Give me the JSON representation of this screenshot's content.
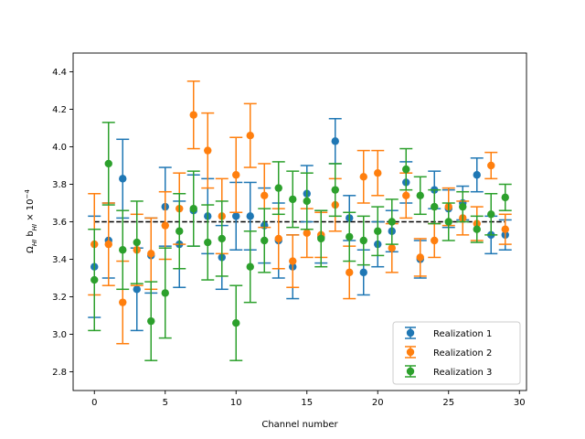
{
  "chart_data": {
    "type": "scatter",
    "title": "",
    "xlabel": "Channel number",
    "ylabel": "Ω_HI b_HI × 10^-4",
    "xlim": [
      -1.5,
      30.5
    ],
    "ylim": [
      2.7,
      4.5
    ],
    "xticks": [
      0,
      5,
      10,
      15,
      20,
      25,
      30
    ],
    "yticks": [
      2.8,
      3.0,
      3.2,
      3.4,
      3.6,
      3.8,
      4.0,
      4.2,
      4.4
    ],
    "reference_line": {
      "y": 3.6,
      "style": "dashed",
      "color": "#000000"
    },
    "legend_position": "lower-right",
    "series": [
      {
        "name": "Realization 1",
        "color": "#1f77b4",
        "x": [
          0,
          1,
          2,
          3,
          4,
          5,
          6,
          7,
          8,
          9,
          10,
          11,
          12,
          13,
          14,
          15,
          16,
          17,
          18,
          19,
          20,
          21,
          22,
          23,
          24,
          25,
          26,
          27,
          28,
          29
        ],
        "y": [
          3.36,
          3.5,
          3.83,
          3.24,
          3.42,
          3.68,
          3.48,
          3.66,
          3.63,
          3.41,
          3.63,
          3.63,
          3.58,
          3.5,
          3.36,
          3.75,
          3.52,
          4.03,
          3.62,
          3.33,
          3.48,
          3.55,
          3.81,
          3.4,
          3.77,
          3.67,
          3.7,
          3.85,
          3.53,
          3.53
        ],
        "yerr": [
          0.27,
          0.2,
          0.21,
          0.22,
          0.2,
          0.21,
          0.23,
          0.19,
          0.2,
          0.17,
          0.18,
          0.18,
          0.2,
          0.2,
          0.17,
          0.15,
          0.14,
          0.12,
          0.12,
          0.12,
          0.12,
          0.11,
          0.11,
          0.1,
          0.1,
          0.1,
          0.09,
          0.09,
          0.1,
          0.08
        ]
      },
      {
        "name": "Realization 2",
        "color": "#ff7f0e",
        "x": [
          0,
          1,
          2,
          3,
          4,
          5,
          6,
          7,
          8,
          9,
          10,
          11,
          12,
          13,
          14,
          15,
          16,
          17,
          18,
          19,
          20,
          21,
          22,
          23,
          24,
          25,
          26,
          27,
          28,
          29
        ],
        "y": [
          3.48,
          3.48,
          3.17,
          3.45,
          3.43,
          3.58,
          3.67,
          4.17,
          3.98,
          3.63,
          3.85,
          4.06,
          3.74,
          3.51,
          3.39,
          3.54,
          3.53,
          3.69,
          3.33,
          3.84,
          3.86,
          3.46,
          3.74,
          3.41,
          3.5,
          3.68,
          3.62,
          3.59,
          3.9,
          3.56
        ],
        "yerr": [
          0.27,
          0.22,
          0.22,
          0.19,
          0.19,
          0.18,
          0.19,
          0.18,
          0.2,
          0.2,
          0.2,
          0.17,
          0.17,
          0.16,
          0.14,
          0.13,
          0.12,
          0.14,
          0.14,
          0.14,
          0.12,
          0.13,
          0.12,
          0.1,
          0.09,
          0.1,
          0.09,
          0.09,
          0.07,
          0.08
        ]
      },
      {
        "name": "Realization 3",
        "color": "#2ca02c",
        "x": [
          0,
          1,
          2,
          3,
          4,
          5,
          6,
          7,
          8,
          9,
          10,
          11,
          12,
          13,
          14,
          15,
          16,
          17,
          18,
          19,
          20,
          21,
          22,
          23,
          24,
          25,
          26,
          27,
          28,
          29
        ],
        "y": [
          3.29,
          3.91,
          3.45,
          3.49,
          3.07,
          3.22,
          3.55,
          3.67,
          3.49,
          3.51,
          3.06,
          3.36,
          3.5,
          3.78,
          3.72,
          3.71,
          3.51,
          3.77,
          3.52,
          3.5,
          3.55,
          3.6,
          3.88,
          3.74,
          3.68,
          3.6,
          3.68,
          3.56,
          3.64,
          3.73
        ],
        "yerr": [
          0.27,
          0.22,
          0.21,
          0.22,
          0.21,
          0.24,
          0.2,
          0.2,
          0.2,
          0.2,
          0.2,
          0.19,
          0.17,
          0.14,
          0.15,
          0.15,
          0.15,
          0.14,
          0.13,
          0.13,
          0.13,
          0.12,
          0.11,
          0.1,
          0.09,
          0.1,
          0.08,
          0.07,
          0.11,
          0.07
        ]
      }
    ]
  }
}
